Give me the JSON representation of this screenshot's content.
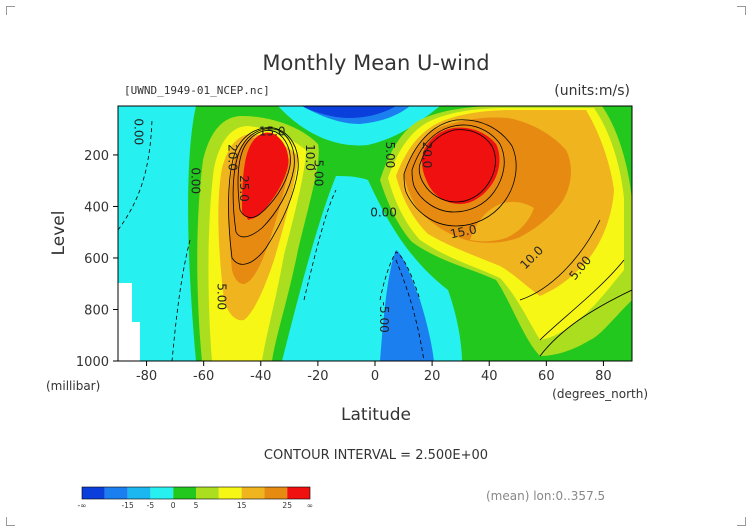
{
  "chart_data": {
    "type": "contour",
    "title": "Monthly Mean U-wind",
    "dataset": "[UWND_1949-01_NCEP.nc]",
    "units": "(units:m/s)",
    "xlabel": "Latitude",
    "x_units": "(degrees_north)",
    "ylabel": "Level",
    "y_units": "(millibar)",
    "xlim": [
      -90,
      90
    ],
    "ylim": [
      1000,
      10
    ],
    "y_axis_inverted": true,
    "x_ticks": [
      "-80",
      "-60",
      "-40",
      "-20",
      "0",
      "20",
      "40",
      "60",
      "80"
    ],
    "x_tick_values": [
      -80,
      -60,
      -40,
      -20,
      0,
      20,
      40,
      60,
      80
    ],
    "y_ticks": [
      "200",
      "400",
      "600",
      "800",
      "1000"
    ],
    "y_tick_values": [
      200,
      400,
      600,
      800,
      1000
    ],
    "contour_interval_text": "CONTOUR INTERVAL = 2.500E+00",
    "averaging_text": "(mean) lon:0..357.5",
    "contour_labels": [
      {
        "text": "0.00",
        "lat": -83,
        "lev": 110,
        "rot": 90
      },
      {
        "text": "0.00",
        "lat": -63,
        "lev": 300,
        "rot": 90
      },
      {
        "text": "15.0",
        "lat": -36,
        "lev": 110,
        "rot": 0
      },
      {
        "text": "20.0",
        "lat": -50,
        "lev": 210,
        "rot": 90
      },
      {
        "text": "25.0",
        "lat": -46,
        "lev": 330,
        "rot": 90
      },
      {
        "text": "10.0",
        "lat": -23,
        "lev": 210,
        "rot": 90
      },
      {
        "text": "5.00",
        "lat": -20,
        "lev": 270,
        "rot": 90
      },
      {
        "text": "5.00",
        "lat": -54,
        "lev": 750,
        "rot": 90
      },
      {
        "text": "5.00",
        "lat": 5,
        "lev": 200,
        "rot": 90
      },
      {
        "text": "20.0",
        "lat": 18,
        "lev": 200,
        "rot": 90
      },
      {
        "text": "0.00",
        "lat": 3,
        "lev": 425,
        "rot": 0
      },
      {
        "text": "15.0",
        "lat": 31,
        "lev": 500,
        "rot": -12
      },
      {
        "text": "10.0",
        "lat": 55,
        "lev": 600,
        "rot": -45
      },
      {
        "text": "5.00",
        "lat": 72,
        "lev": 640,
        "rot": -50
      },
      {
        "text": "-5.00",
        "lat": 3,
        "lev": 830,
        "rot": 90
      }
    ],
    "colorbar": {
      "labels": [
        "-∞",
        "-15",
        "-5",
        "0",
        "5",
        "15",
        "25",
        "∞"
      ],
      "colors": [
        "#0b3fdc",
        "#1c7ff0",
        "#1cb7f0",
        "#27f0f0",
        "#22c81e",
        "#aade1e",
        "#f7f716",
        "#f0b41e",
        "#e68a12",
        "#f01010"
      ]
    },
    "filled_regions": [
      {
        "level": "u < -15",
        "color": "#0b3fdc",
        "description": "thin band at top near lat -20..10"
      },
      {
        "level": "-5 < u < 0",
        "color": "#27f0f0",
        "description": "tropical easterlies and southern high latitudes"
      },
      {
        "level": "-15 < u < -5",
        "color": "#1c7ff0",
        "description": "lower troposphere near lat 0..20"
      },
      {
        "level": "u > 25",
        "color": "#f01010",
        "description": "southern jet core near lat -40, 200mb"
      },
      {
        "level": "u > 25",
        "color": "#f01010",
        "description": "northern jet core near lat 30, 200mb"
      }
    ]
  }
}
